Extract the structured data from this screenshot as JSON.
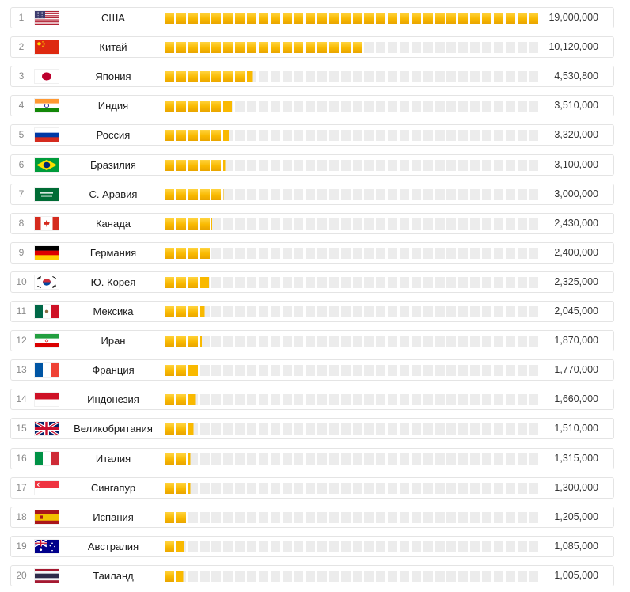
{
  "chart_data": {
    "type": "bar",
    "max": 19000000,
    "segment_count": 32,
    "colors": {
      "bar_on": "#f9b900",
      "bar_off": "#ececec",
      "border": "#e4e4e4"
    },
    "items": [
      {
        "rank": "1",
        "country": "США",
        "flag": "usa",
        "value": 19000000,
        "label": "19,000,000"
      },
      {
        "rank": "2",
        "country": "Китай",
        "flag": "china",
        "value": 10120000,
        "label": "10,120,000"
      },
      {
        "rank": "3",
        "country": "Япония",
        "flag": "japan",
        "value": 4530800,
        "label": "4,530,800"
      },
      {
        "rank": "4",
        "country": "Индия",
        "flag": "india",
        "value": 3510000,
        "label": "3,510,000"
      },
      {
        "rank": "5",
        "country": "Россия",
        "flag": "russia",
        "value": 3320000,
        "label": "3,320,000"
      },
      {
        "rank": "6",
        "country": "Бразилия",
        "flag": "brazil",
        "value": 3100000,
        "label": "3,100,000"
      },
      {
        "rank": "7",
        "country": "С. Аравия",
        "flag": "saudi-arabia",
        "value": 3000000,
        "label": "3,000,000"
      },
      {
        "rank": "8",
        "country": "Канада",
        "flag": "canada",
        "value": 2430000,
        "label": "2,430,000"
      },
      {
        "rank": "9",
        "country": "Германия",
        "flag": "germany",
        "value": 2400000,
        "label": "2,400,000"
      },
      {
        "rank": "10",
        "country": "Ю. Корея",
        "flag": "south-korea",
        "value": 2325000,
        "label": "2,325,000"
      },
      {
        "rank": "11",
        "country": "Мексика",
        "flag": "mexico",
        "value": 2045000,
        "label": "2,045,000"
      },
      {
        "rank": "12",
        "country": "Иран",
        "flag": "iran",
        "value": 1870000,
        "label": "1,870,000"
      },
      {
        "rank": "13",
        "country": "Франция",
        "flag": "france",
        "value": 1770000,
        "label": "1,770,000"
      },
      {
        "rank": "14",
        "country": "Индонезия",
        "flag": "indonesia",
        "value": 1660000,
        "label": "1,660,000"
      },
      {
        "rank": "15",
        "country": "Великобритания",
        "flag": "uk",
        "value": 1510000,
        "label": "1,510,000"
      },
      {
        "rank": "16",
        "country": "Италия",
        "flag": "italy",
        "value": 1315000,
        "label": "1,315,000"
      },
      {
        "rank": "17",
        "country": "Сингапур",
        "flag": "singapore",
        "value": 1300000,
        "label": "1,300,000"
      },
      {
        "rank": "18",
        "country": "Испания",
        "flag": "spain",
        "value": 1205000,
        "label": "1,205,000"
      },
      {
        "rank": "19",
        "country": "Австралия",
        "flag": "australia",
        "value": 1085000,
        "label": "1,085,000"
      },
      {
        "rank": "20",
        "country": "Таиланд",
        "flag": "thailand",
        "value": 1005000,
        "label": "1,005,000"
      }
    ]
  }
}
